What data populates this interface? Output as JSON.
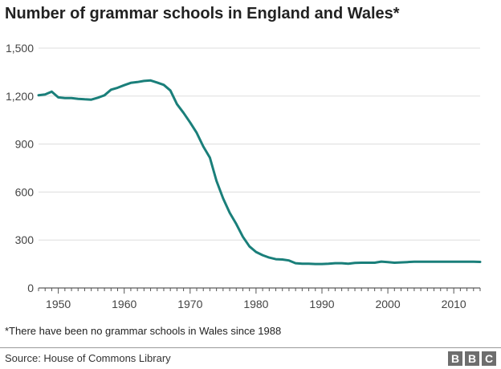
{
  "chart_data": {
    "type": "line",
    "title": "Number of grammar schools in England and Wales*",
    "xlabel": "",
    "ylabel": "",
    "xlim": [
      1947,
      2014
    ],
    "ylim": [
      0,
      1500
    ],
    "x_ticks": [
      1950,
      1960,
      1970,
      1980,
      1990,
      2000,
      2010
    ],
    "y_ticks": [
      0,
      300,
      600,
      900,
      1200,
      1500
    ],
    "y_tick_labels": [
      "0",
      "300",
      "600",
      "900",
      "1,200",
      "1,500"
    ],
    "grid": true,
    "color": "#1a7f7a",
    "series": [
      {
        "name": "",
        "x": [
          1947,
          1948,
          1949,
          1950,
          1951,
          1952,
          1953,
          1954,
          1955,
          1956,
          1957,
          1958,
          1959,
          1960,
          1961,
          1962,
          1963,
          1964,
          1965,
          1966,
          1967,
          1968,
          1969,
          1970,
          1971,
          1972,
          1973,
          1974,
          1975,
          1976,
          1977,
          1978,
          1979,
          1980,
          1981,
          1982,
          1983,
          1984,
          1985,
          1986,
          1987,
          1988,
          1989,
          1990,
          1991,
          1992,
          1993,
          1994,
          1995,
          1996,
          1997,
          1998,
          1999,
          2000,
          2001,
          2002,
          2003,
          2004,
          2005,
          2006,
          2007,
          2008,
          2009,
          2010,
          2011,
          2012,
          2013,
          2014
        ],
        "values": [
          1205,
          1210,
          1228,
          1192,
          1188,
          1188,
          1183,
          1180,
          1178,
          1190,
          1205,
          1240,
          1252,
          1268,
          1283,
          1288,
          1295,
          1298,
          1285,
          1270,
          1235,
          1150,
          1095,
          1035,
          970,
          885,
          815,
          670,
          560,
          470,
          400,
          320,
          260,
          225,
          205,
          190,
          180,
          178,
          172,
          155,
          152,
          152,
          150,
          150,
          152,
          155,
          155,
          152,
          157,
          158,
          158,
          158,
          165,
          162,
          158,
          160,
          162,
          164,
          164,
          164,
          164,
          164,
          164,
          164,
          164,
          164,
          164,
          163
        ]
      }
    ]
  },
  "footnote": "*There have been no grammar schools in Wales since 1988",
  "source": "Source: House of Commons Library",
  "logo": {
    "letters": [
      "B",
      "B",
      "C"
    ]
  }
}
